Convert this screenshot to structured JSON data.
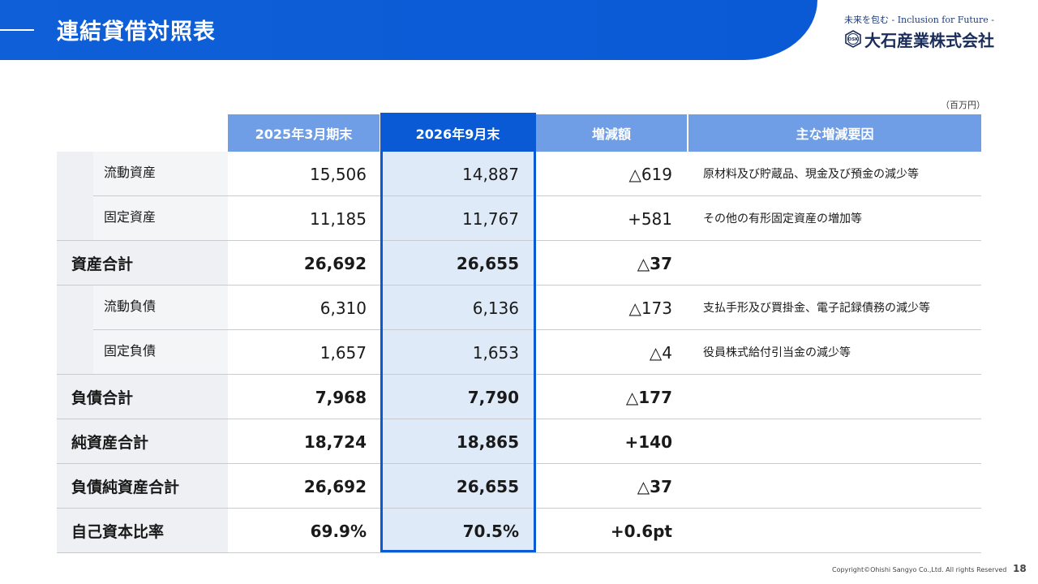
{
  "header": {
    "title": "連結貸借対照表"
  },
  "logo": {
    "tagline": "未来を包む - Inclusion for Future -",
    "company": "大石産業株式会社",
    "mark_text": "OSK"
  },
  "unit": "（百万円）",
  "table": {
    "headers": [
      "",
      "2025年3月期末",
      "2026年9月末",
      "増減額",
      "主な増減要因"
    ],
    "rows": [
      {
        "label": "流動資産",
        "v1": "15,506",
        "v2": "14,887",
        "diff": "△619",
        "reason": "原材料及び貯蔵品、現金及び預金の減少等"
      },
      {
        "label": "固定資産",
        "v1": "11,185",
        "v2": "11,767",
        "diff": "+581",
        "reason": "その他の有形固定資産の増加等"
      },
      {
        "label": "資産合計",
        "v1": "26,692",
        "v2": "26,655",
        "diff": "△37",
        "reason": ""
      },
      {
        "label": "流動負債",
        "v1": "6,310",
        "v2": "6,136",
        "diff": "△173",
        "reason": "支払手形及び買掛金、電子記録債務の減少等"
      },
      {
        "label": "固定負債",
        "v1": "1,657",
        "v2": "1,653",
        "diff": "△4",
        "reason": "役員株式給付引当金の減少等"
      },
      {
        "label": "負債合計",
        "v1": "7,968",
        "v2": "7,790",
        "diff": "△177",
        "reason": ""
      },
      {
        "label": "純資産合計",
        "v1": "18,724",
        "v2": "18,865",
        "diff": "+140",
        "reason": ""
      },
      {
        "label": "負債純資産合計",
        "v1": "26,692",
        "v2": "26,655",
        "diff": "△37",
        "reason": ""
      },
      {
        "label": "自己資本比率",
        "v1": "69.9%",
        "v2": "70.5%",
        "diff": "+0.6pt",
        "reason": ""
      }
    ]
  },
  "footer": {
    "copyright": "Copyright©Ohishi Sangyo Co.,Ltd. All rights Reserved",
    "page": "18"
  },
  "colors": {
    "brand_blue": "#0a5ad6",
    "header_light_blue": "#6f9ee6",
    "highlight_column": "#dfeaf8"
  }
}
